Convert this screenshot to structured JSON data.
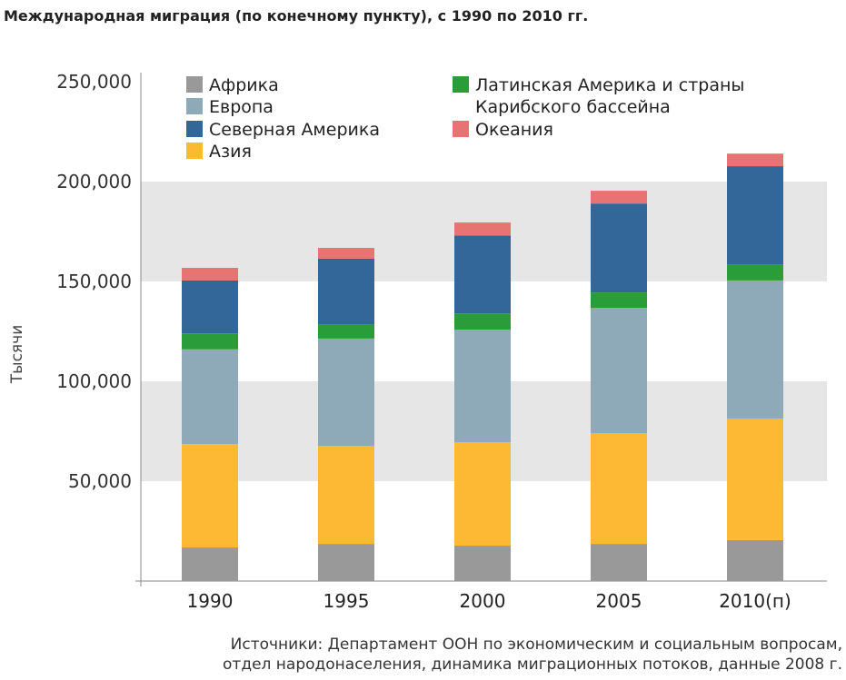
{
  "chart_data": {
    "type": "bar",
    "stacked": true,
    "title": "Международная миграция (по конечному пункту), с 1990 по 2010 гг.",
    "ylabel": "Тысячи",
    "xlabel": "",
    "ylim": [
      0,
      250000
    ],
    "yticks": [
      "50,000",
      "100,000",
      "150,000",
      "200,000",
      "250,000"
    ],
    "ytick_values": [
      50000,
      100000,
      150000,
      200000,
      250000
    ],
    "categories": [
      "1990",
      "1995",
      "2000",
      "2005",
      "2010(п)"
    ],
    "legend_position": "top",
    "grid": "alternating bands",
    "series": [
      {
        "name": "Африка",
        "color": "#999999",
        "values": [
          16800,
          18600,
          17700,
          18600,
          20500
        ]
      },
      {
        "name": "Азия",
        "color": "#fdb933",
        "values": [
          51800,
          49100,
          51800,
          55400,
          60900
        ]
      },
      {
        "name": "Европа",
        "color": "#8ea9b8",
        "values": [
          47400,
          53700,
          56400,
          62800,
          69100
        ]
      },
      {
        "name": "Латинская Америка и страны Карибского бассейна",
        "color": "#2a9d3a",
        "values": [
          8000,
          7200,
          8100,
          7700,
          8100
        ]
      },
      {
        "name": "Северная Америка",
        "color": "#336699",
        "values": [
          26500,
          32800,
          39000,
          44500,
          49100
        ]
      },
      {
        "name": "Океания",
        "color": "#e77373",
        "values": [
          6300,
          5400,
          6500,
          6400,
          6300
        ]
      }
    ]
  },
  "source": {
    "line1": "Источники: Департамент ООН по экономическим и социальным вопросам,",
    "line2": "отдел народонаселения, динамика миграционных потоков, данные 2008 г."
  }
}
